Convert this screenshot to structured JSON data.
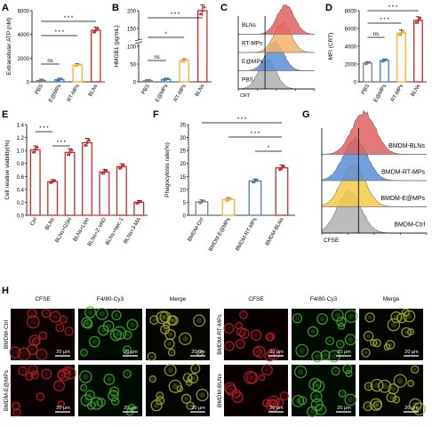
{
  "panels": {
    "A": {
      "letter": "A",
      "ylabel": "Extracellular ATP (nM)",
      "yticks": [
        "0",
        "2000",
        "4000",
        "6000"
      ],
      "categories": [
        "PBS",
        "E@MPs",
        "RT-MPs",
        "BLNs"
      ],
      "values": [
        100,
        180,
        1420,
        4350
      ],
      "ymax": 6000,
      "colors": [
        "#808080",
        "#4a78c2",
        "#f0b429",
        "#cc2a2a"
      ],
      "sig": [
        "ns",
        "* * *",
        "* * *"
      ]
    },
    "B": {
      "letter": "B",
      "ylabel": "HMGB1 (pg/mL)",
      "yticks": [
        "0",
        "50",
        "100",
        "150",
        "200"
      ],
      "categories": [
        "PBS",
        "E@MPs",
        "RT-MPs",
        "BLNs"
      ],
      "values": [
        3,
        7,
        60,
        200
      ],
      "colors": [
        "#808080",
        "#4a78c2",
        "#f0b429",
        "#cc2a2a"
      ],
      "sig": [
        "ns",
        "*",
        "* * *"
      ]
    },
    "C": {
      "letter": "C",
      "labels": [
        "BLNs",
        "RT-MPs",
        "E@MPs",
        "PBS"
      ],
      "colors": [
        "#e06060",
        "#f5b36a",
        "#5b8fd6",
        "#b0b0b0"
      ],
      "axis_label": "CRT"
    },
    "D": {
      "letter": "D",
      "ylabel": "MFI (CRT)",
      "yticks": [
        "0",
        "2000",
        "4000",
        "6000",
        "8000"
      ],
      "categories": [
        "PBS",
        "E@MPs",
        "RT-MPs",
        "BLNs"
      ],
      "values": [
        2100,
        2400,
        5500,
        6900
      ],
      "ymax": 8000,
      "colors": [
        "#808080",
        "#4a78c2",
        "#f0b429",
        "#cc2a2a"
      ],
      "sig": [
        "ns",
        "* * *",
        "* * *"
      ]
    },
    "E": {
      "letter": "E",
      "ylabel": "Cell relative viability(%)",
      "yticks": [
        "0.0",
        "0.2",
        "0.4",
        "0.6",
        "0.8",
        "1.0",
        "1.2",
        "1.4"
      ],
      "categories": [
        "Ctrl",
        "BLNs",
        "BLNs+GSH",
        "BLNs+Lipo",
        "BLNs+Z-VAD",
        "BLNs+Nec-1",
        "BLNs+3-MA"
      ],
      "values": [
        1.01,
        0.52,
        0.97,
        1.12,
        0.67,
        0.75,
        0.2
      ],
      "ymax": 1.4,
      "color": "#cc2a2a",
      "sig": [
        "* * *",
        "* * *"
      ]
    },
    "F": {
      "letter": "F",
      "ylabel": "Phagocytosis rate(%)",
      "yticks": [
        "0",
        "5",
        "10",
        "15",
        "20",
        "25",
        "30",
        "35"
      ],
      "categories": [
        "BMDM-Ctrl",
        "BMDM-E@MPs",
        "BMDM-RT-MPs",
        "BMDM-BLNs"
      ],
      "values": [
        5.2,
        6.1,
        13.2,
        18.3
      ],
      "ymax": 35,
      "colors": [
        "#808080",
        "#f0b429",
        "#4a78c2",
        "#cc2a2a"
      ],
      "sig": [
        "* * *",
        "* * *",
        "*"
      ]
    },
    "G": {
      "letter": "G",
      "labels": [
        "BMDM-BLNs",
        "BMDM-RT-MPs",
        "BMDM-E@MPs",
        "BMDM-Ctrl"
      ],
      "colors": [
        "#e06060",
        "#5b8fd6",
        "#f5c94a",
        "#b0b0b0"
      ],
      "axis_label": "CFSE"
    },
    "H": {
      "letter": "H",
      "col_headers": [
        "CFSE",
        "F4/80-Cy3",
        "Merge",
        "CFSE",
        "F4/80-Cy3",
        "Merge"
      ],
      "row_labels": [
        "BMDM-Ctrl",
        "BMDM-E@MPs",
        "BMDM-RT-MPs",
        "BMDM-BLNs"
      ],
      "scale": "20 μm"
    }
  }
}
